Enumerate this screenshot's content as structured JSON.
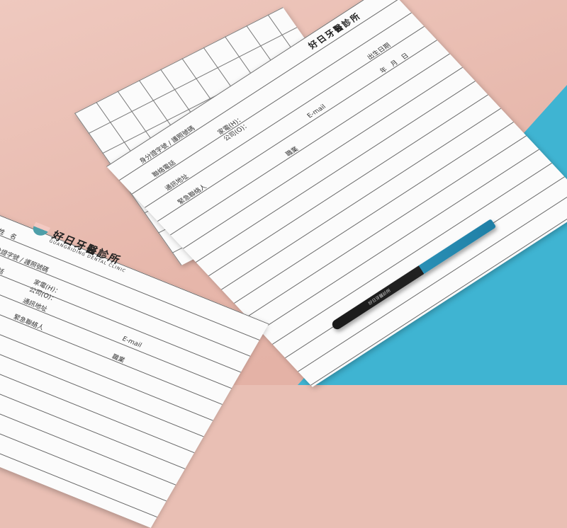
{
  "scene": {
    "background_colors": {
      "pink": "#e6b6aa",
      "cyan": "#3fb4d2"
    },
    "clinic_logo": {
      "name": "好日牙醫診所",
      "english": "GUANGRIDING DENTAL CLINIC"
    },
    "front_form": {
      "fields": [
        "姓　名",
        "身分證字號 / 護照號碼",
        "聯絡電話",
        "家電(H)：",
        "公司(O)：",
        "通訊地址",
        "緊急聯絡人",
        "E-mail",
        "職業"
      ]
    },
    "back_form": {
      "fields": [
        "身分證字號 / 護照號碼",
        "聯絡電話",
        "通訊地址",
        "家電(H)：",
        "公司(O)：",
        "緊急聯絡人",
        "E-mail",
        "職業",
        "出生日期",
        "年　月　日"
      ]
    },
    "pen": {
      "color": "#2a8fb5",
      "print": "好日牙醫診所"
    }
  }
}
